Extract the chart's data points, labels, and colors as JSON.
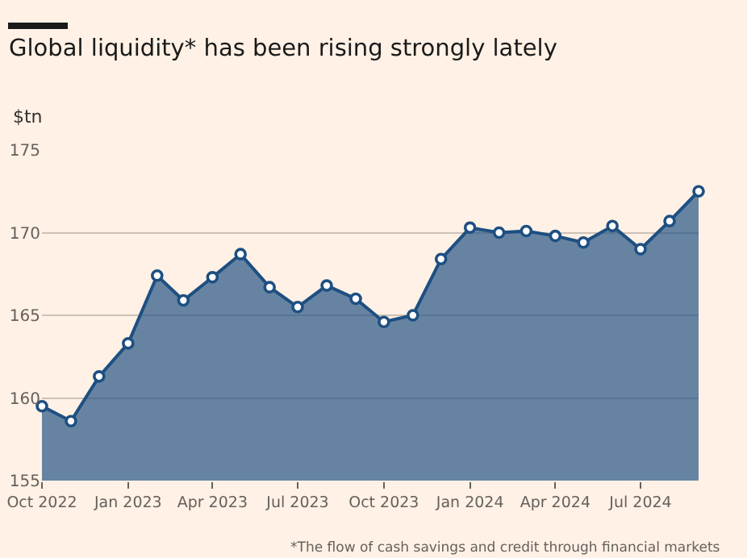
{
  "chart_data": {
    "type": "area",
    "title": "Global liquidity* has been rising strongly lately",
    "ylabel": "$tn",
    "x": [
      "2022-10",
      "2022-11",
      "2022-12",
      "2023-01",
      "2023-02",
      "2023-03",
      "2023-04",
      "2023-05",
      "2023-06",
      "2023-07",
      "2023-08",
      "2023-09",
      "2023-10",
      "2023-11",
      "2023-12",
      "2024-01",
      "2024-02",
      "2024-03",
      "2024-04",
      "2024-05",
      "2024-06",
      "2024-07",
      "2024-08",
      "2024-09"
    ],
    "series": [
      {
        "color": "#1e4f82",
        "values": [
          159.5,
          158.6,
          161.3,
          163.3,
          167.4,
          165.9,
          167.3,
          168.7,
          166.7,
          165.5,
          166.8,
          166.0,
          164.6,
          165.0,
          168.4,
          170.3,
          170.0,
          170.1,
          169.8,
          169.4,
          170.4,
          169.0,
          170.7,
          172.5
        ]
      }
    ],
    "xlim": [
      "2022-10",
      "2024-09"
    ],
    "xticks": [
      {
        "value": "2022-10",
        "label": "Oct 2022"
      },
      {
        "value": "2023-01",
        "label": "Jan 2023"
      },
      {
        "value": "2023-04",
        "label": "Apr 2023"
      },
      {
        "value": "2023-07",
        "label": "Jul 2023"
      },
      {
        "value": "2023-10",
        "label": "Oct 2023"
      },
      {
        "value": "2024-01",
        "label": "Jan 2024"
      },
      {
        "value": "2024-04",
        "label": "Apr 2024"
      },
      {
        "value": "2024-07",
        "label": "Jul 2024"
      }
    ],
    "ylim": [
      155,
      175
    ],
    "yticks": [
      155,
      160,
      165,
      170,
      175
    ],
    "grid": "y",
    "marker": "circle",
    "line_style": "solid",
    "annotations": [
      "*The flow of cash savings and credit through financial markets"
    ]
  }
}
